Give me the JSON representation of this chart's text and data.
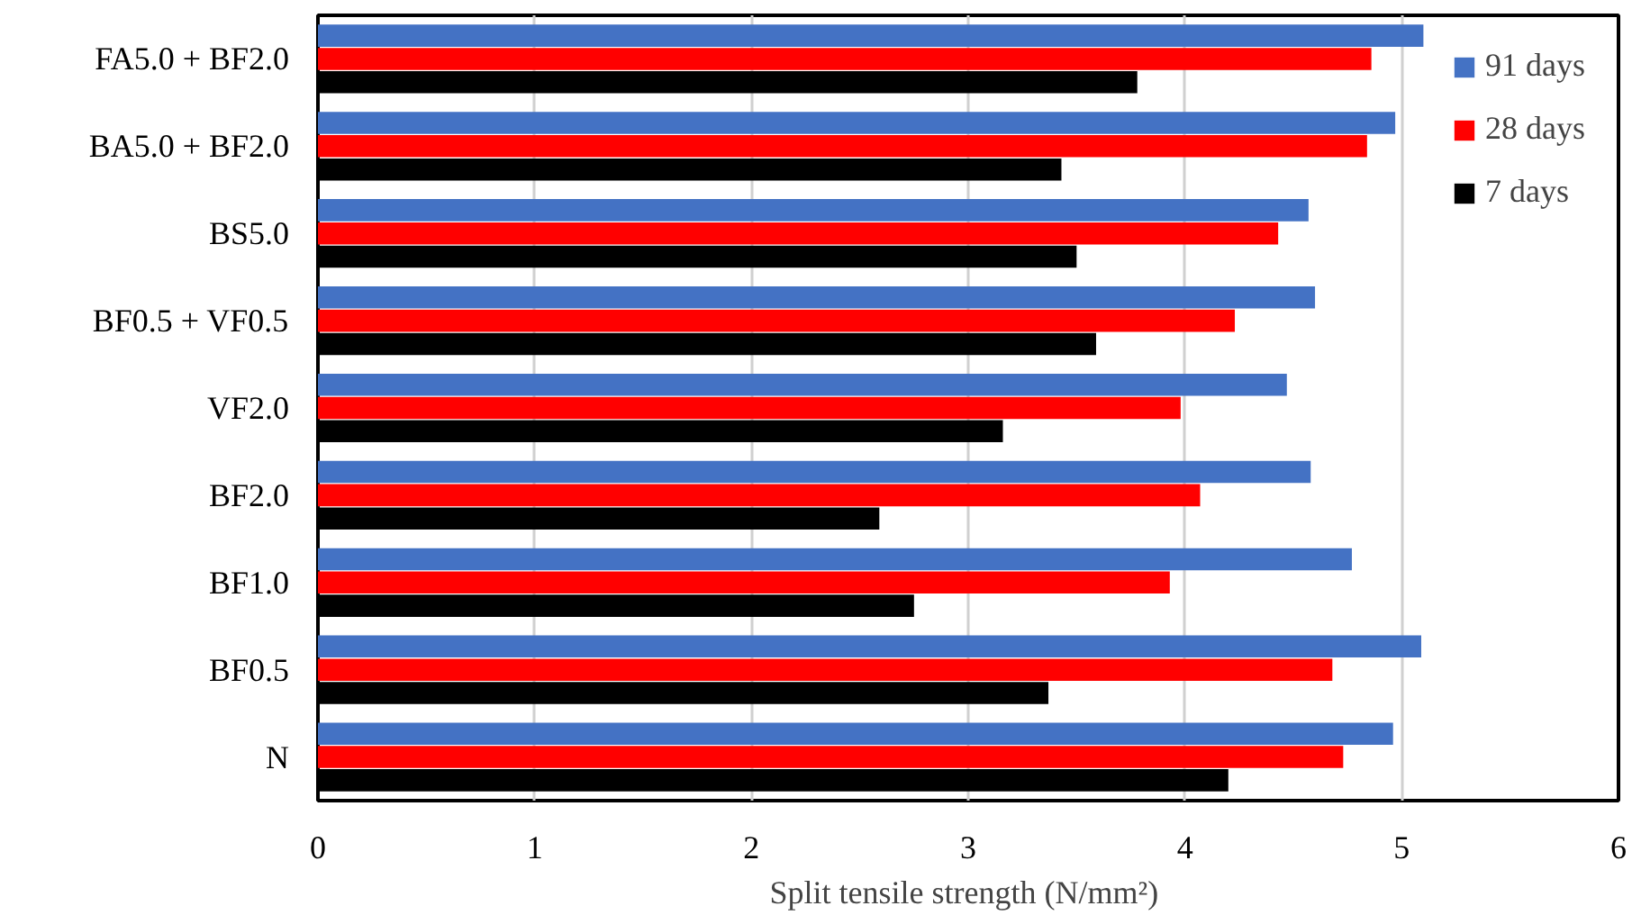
{
  "chart_data": {
    "type": "bar",
    "orientation": "horizontal",
    "xlabel": "Split tensile strength  (N/mm²)",
    "categories": [
      "FA5.0 + BF2.0",
      "BA5.0 + BF2.0",
      "BS5.0",
      "BF0.5 + VF0.5",
      "VF2.0",
      "BF2.0",
      "BF1.0",
      "BF0.5",
      "N"
    ],
    "series": [
      {
        "name": "91 days",
        "color": "#4472c4",
        "values": [
          5.1,
          4.97,
          4.57,
          4.6,
          4.47,
          4.58,
          4.77,
          5.09,
          4.96
        ]
      },
      {
        "name": "28 days",
        "color": "#ff0000",
        "values": [
          4.86,
          4.84,
          4.43,
          4.23,
          3.98,
          4.07,
          3.93,
          4.68,
          4.73
        ]
      },
      {
        "name": "7 days",
        "color": "#000000",
        "values": [
          3.78,
          3.43,
          3.5,
          3.59,
          3.16,
          2.59,
          2.75,
          3.37,
          4.2
        ]
      }
    ],
    "xlim": [
      0,
      6
    ],
    "xticks": [
      0,
      1,
      2,
      3,
      4,
      5,
      6
    ],
    "grid": "x",
    "legend": "top right"
  }
}
